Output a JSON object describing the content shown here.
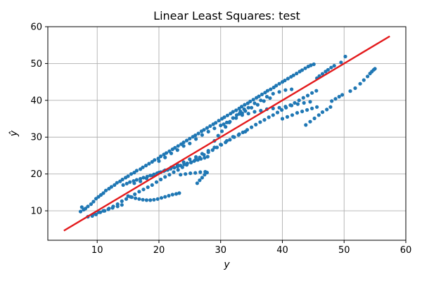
{
  "chart_data": {
    "type": "scatter",
    "title": "Linear Least Squares: test",
    "xlabel": "y",
    "ylabel": "ŷ",
    "xlim": [
      2,
      60
    ],
    "ylim": [
      2,
      60
    ],
    "xticks": [
      10,
      20,
      30,
      40,
      50,
      60
    ],
    "yticks": [
      10,
      20,
      30,
      40,
      50,
      60
    ],
    "grid": true,
    "colors": {
      "points": "#1f77b4",
      "fit_line": "#e31a1c",
      "grid": "#b0b0b0"
    },
    "fit_line": {
      "x": [
        4.6,
        57.4
      ],
      "y": [
        4.6,
        57.4
      ]
    },
    "series": [
      {
        "x": [
          7.3,
          7.5,
          7.8,
          8.1,
          8.5,
          9.0,
          9.4,
          9.8,
          10.2,
          10.6,
          11.0,
          11.4,
          11.9,
          12.3,
          12.8,
          13.2,
          13.7,
          14.1,
          14.6,
          15.0,
          15.5,
          16.0,
          16.4,
          17.0,
          17.4,
          17.9,
          18.4,
          18.9,
          19.3,
          19.9,
          20.3,
          20.8,
          21.2,
          21.7,
          22.2,
          22.6,
          23.1,
          23.6,
          24.0,
          24.5,
          25.0,
          25.5,
          25.9,
          26.4,
          26.9,
          27.3,
          27.8,
          28.3,
          28.8,
          29.2,
          29.7,
          30.2,
          30.6,
          31.1,
          31.6,
          32.0,
          32.5,
          33.0,
          33.4,
          33.9,
          34.4,
          34.8,
          35.3,
          35.8,
          36.2,
          36.7,
          37.2,
          37.6,
          38.1,
          38.6,
          39.0,
          39.5,
          40.0,
          40.4,
          40.9,
          41.4,
          41.8,
          42.3,
          42.8,
          43.2,
          43.7,
          44.2,
          44.6,
          45.1,
          45.6,
          46.0,
          46.5,
          47.0,
          47.4,
          47.9,
          48.4
        ],
        "y": [
          9.8,
          11.0,
          10.3,
          10.6,
          11.2,
          11.8,
          12.5,
          13.3,
          13.8,
          14.3,
          14.8,
          15.5,
          16.0,
          16.5,
          17.0,
          17.6,
          18.0,
          18.5,
          19.0,
          19.4,
          20.0,
          20.4,
          20.9,
          21.3,
          21.8,
          22.3,
          22.8,
          23.3,
          23.8,
          24.2,
          24.8,
          25.3,
          25.7,
          26.2,
          26.7,
          27.1,
          27.6,
          28.1,
          28.6,
          29.1,
          29.6,
          30.1,
          30.5,
          31.0,
          31.6,
          32.0,
          32.5,
          33.0,
          33.5,
          33.9,
          34.5,
          35.0,
          35.4,
          35.9,
          36.4,
          36.9,
          37.3,
          37.8,
          38.3,
          38.8,
          39.2,
          39.7,
          40.2,
          40.7,
          41.1,
          41.6,
          42.1,
          42.6,
          43.0,
          43.5,
          44.0,
          44.5,
          45.0,
          45.4,
          45.9,
          46.4,
          46.8,
          47.3,
          47.8,
          48.2,
          48.7,
          49.2,
          49.5,
          49.8,
          46.0,
          46.6,
          47.2,
          47.8,
          48.3,
          48.9,
          49.4
        ]
      },
      {
        "x": [
          8.5,
          9.2,
          9.8,
          10.5,
          11.2,
          11.9,
          12.6,
          13.3,
          14.0,
          14.7,
          15.4,
          16.1,
          16.8,
          17.5,
          18.2,
          18.9,
          19.6,
          20.3,
          21.0,
          21.7,
          22.4,
          23.1,
          23.8,
          24.5,
          25.2,
          25.9,
          26.6,
          27.3,
          28.0,
          28.7,
          29.4,
          30.1,
          30.8,
          31.5,
          32.2,
          32.9,
          33.6,
          34.3,
          35.0,
          35.7,
          36.4,
          37.1,
          37.8,
          38.5,
          39.2,
          39.9,
          40.6,
          41.3,
          42.0,
          42.7,
          43.4,
          44.1,
          44.8,
          45.5
        ],
        "y": [
          8.4,
          8.6,
          9.0,
          9.6,
          10.0,
          10.6,
          11.2,
          11.8,
          12.6,
          13.2,
          13.8,
          14.5,
          15.2,
          15.8,
          16.4,
          17.0,
          17.8,
          18.5,
          19.2,
          19.8,
          20.5,
          21.1,
          21.8,
          22.5,
          23.1,
          23.8,
          24.5,
          25.2,
          25.9,
          26.5,
          27.2,
          27.9,
          28.6,
          29.3,
          30.0,
          30.6,
          31.3,
          32.0,
          32.7,
          33.4,
          34.1,
          34.7,
          35.4,
          36.0,
          36.7,
          37.4,
          38.0,
          38.7,
          39.3,
          40.0,
          40.7,
          41.3,
          42.0,
          42.6
        ]
      },
      {
        "x": [
          14.2,
          14.8,
          15.3,
          15.9,
          16.4,
          17.0,
          17.5,
          18.1,
          18.6,
          19.2,
          19.7,
          20.3,
          20.8,
          21.4,
          21.9,
          22.5,
          23.0,
          23.5,
          24.1,
          24.6,
          25.2,
          25.7,
          26.3,
          26.8,
          27.4,
          27.9
        ],
        "y": [
          17.0,
          17.4,
          17.8,
          18.1,
          18.4,
          18.7,
          19.0,
          19.3,
          19.6,
          19.9,
          20.2,
          20.5,
          20.8,
          21.1,
          21.4,
          21.7,
          22.0,
          22.3,
          22.6,
          22.9,
          23.2,
          23.5,
          23.8,
          24.1,
          24.4,
          24.7
        ]
      },
      {
        "x": [
          15.0,
          15.6,
          16.2,
          16.8,
          17.4,
          18.0,
          18.6,
          19.2,
          19.8,
          20.4,
          21.0,
          21.6,
          22.2,
          22.8,
          23.3
        ],
        "y": [
          14.0,
          13.7,
          13.4,
          13.2,
          13.0,
          12.9,
          12.9,
          13.0,
          13.2,
          13.5,
          13.8,
          14.1,
          14.4,
          14.6,
          14.8
        ]
      },
      {
        "x": [
          9.5,
          10.2,
          11.0,
          11.8,
          12.5,
          13.3,
          14.0
        ],
        "y": [
          9.2,
          9.6,
          10.0,
          10.4,
          10.8,
          11.2,
          11.6
        ]
      },
      {
        "x": [
          26.2,
          26.6,
          27.0,
          27.4,
          27.8
        ],
        "y": [
          17.5,
          18.3,
          19.0,
          19.8,
          20.4
        ]
      },
      {
        "x": [
          23.5,
          24.3,
          25.1,
          25.9,
          26.7,
          27.5
        ],
        "y": [
          19.8,
          20.0,
          20.2,
          20.3,
          20.5,
          20.6
        ]
      },
      {
        "x": [
          29.0,
          29.6,
          30.2,
          30.8,
          31.4,
          32.0,
          32.6,
          33.2,
          33.8
        ],
        "y": [
          29.0,
          30.4,
          31.6,
          32.8,
          34.0,
          35.2,
          36.0,
          37.0,
          37.6
        ]
      },
      {
        "x": [
          33.5,
          34.5,
          35.5,
          36.5,
          37.5,
          38.5,
          39.5,
          40.5,
          41.5,
          42.5,
          43.5,
          44.5
        ],
        "y": [
          36.0,
          36.4,
          36.9,
          37.2,
          37.6,
          37.8,
          38.0,
          38.3,
          38.6,
          39.0,
          39.3,
          39.6
        ]
      },
      {
        "x": [
          40.0,
          40.8,
          41.6,
          42.4,
          43.2,
          44.0,
          44.8,
          45.6
        ],
        "y": [
          35.0,
          35.5,
          36.0,
          36.6,
          37.0,
          37.4,
          37.8,
          38.2
        ]
      },
      {
        "x": [
          43.8,
          44.5,
          45.2,
          45.9,
          46.5,
          47.2,
          47.8
        ],
        "y": [
          33.3,
          34.2,
          35.1,
          36.0,
          36.8,
          37.5,
          38.2
        ]
      },
      {
        "x": [
          48.0,
          48.6,
          49.2,
          49.7
        ],
        "y": [
          39.8,
          40.4,
          41.0,
          41.5
        ]
      },
      {
        "x": [
          51.0,
          51.8,
          52.6,
          53.2,
          53.8,
          54.2,
          54.5,
          54.8,
          55.0
        ],
        "y": [
          42.5,
          43.3,
          44.5,
          45.5,
          46.5,
          47.3,
          47.8,
          48.3,
          48.6
        ]
      },
      {
        "x": [
          49.5,
          50.2
        ],
        "y": [
          50.3,
          51.9
        ]
      },
      {
        "x": [
          30.5,
          31.5,
          32.5,
          33.5,
          34.5,
          35.5,
          36.5,
          37.5,
          38.5,
          39.5,
          40.5,
          41.5
        ],
        "y": [
          33.5,
          34.2,
          35.2,
          36.5,
          38.0,
          39.2,
          40.0,
          41.0,
          41.8,
          42.3,
          42.8,
          43.0
        ]
      },
      {
        "x": [
          20.0,
          21.0,
          22.0,
          23.0,
          24.0,
          25.0,
          26.0,
          27.0,
          28.0,
          29.0,
          30.0,
          31.0,
          32.0,
          33.0,
          34.0,
          35.0,
          36.0,
          37.0,
          38.0
        ],
        "y": [
          23.5,
          24.5,
          25.6,
          26.5,
          27.6,
          28.3,
          29.5,
          30.6,
          31.5,
          32.4,
          33.2,
          34.0,
          35.2,
          36.3,
          37.1,
          38.0,
          38.8,
          39.8,
          40.6
        ]
      },
      {
        "x": [
          16.0,
          17.0,
          18.0,
          19.0,
          20.0,
          21.0,
          22.0,
          23.0,
          24.0,
          25.0,
          26.0,
          27.0,
          28.0,
          29.0,
          30.0,
          31.0,
          32.0,
          33.0,
          34.0
        ],
        "y": [
          17.5,
          18.0,
          18.8,
          19.6,
          20.4,
          21.0,
          21.8,
          22.5,
          23.2,
          24.0,
          24.6,
          25.5,
          26.3,
          27.2,
          28.0,
          29.0,
          30.1,
          30.8,
          31.5
        ]
      }
    ]
  }
}
